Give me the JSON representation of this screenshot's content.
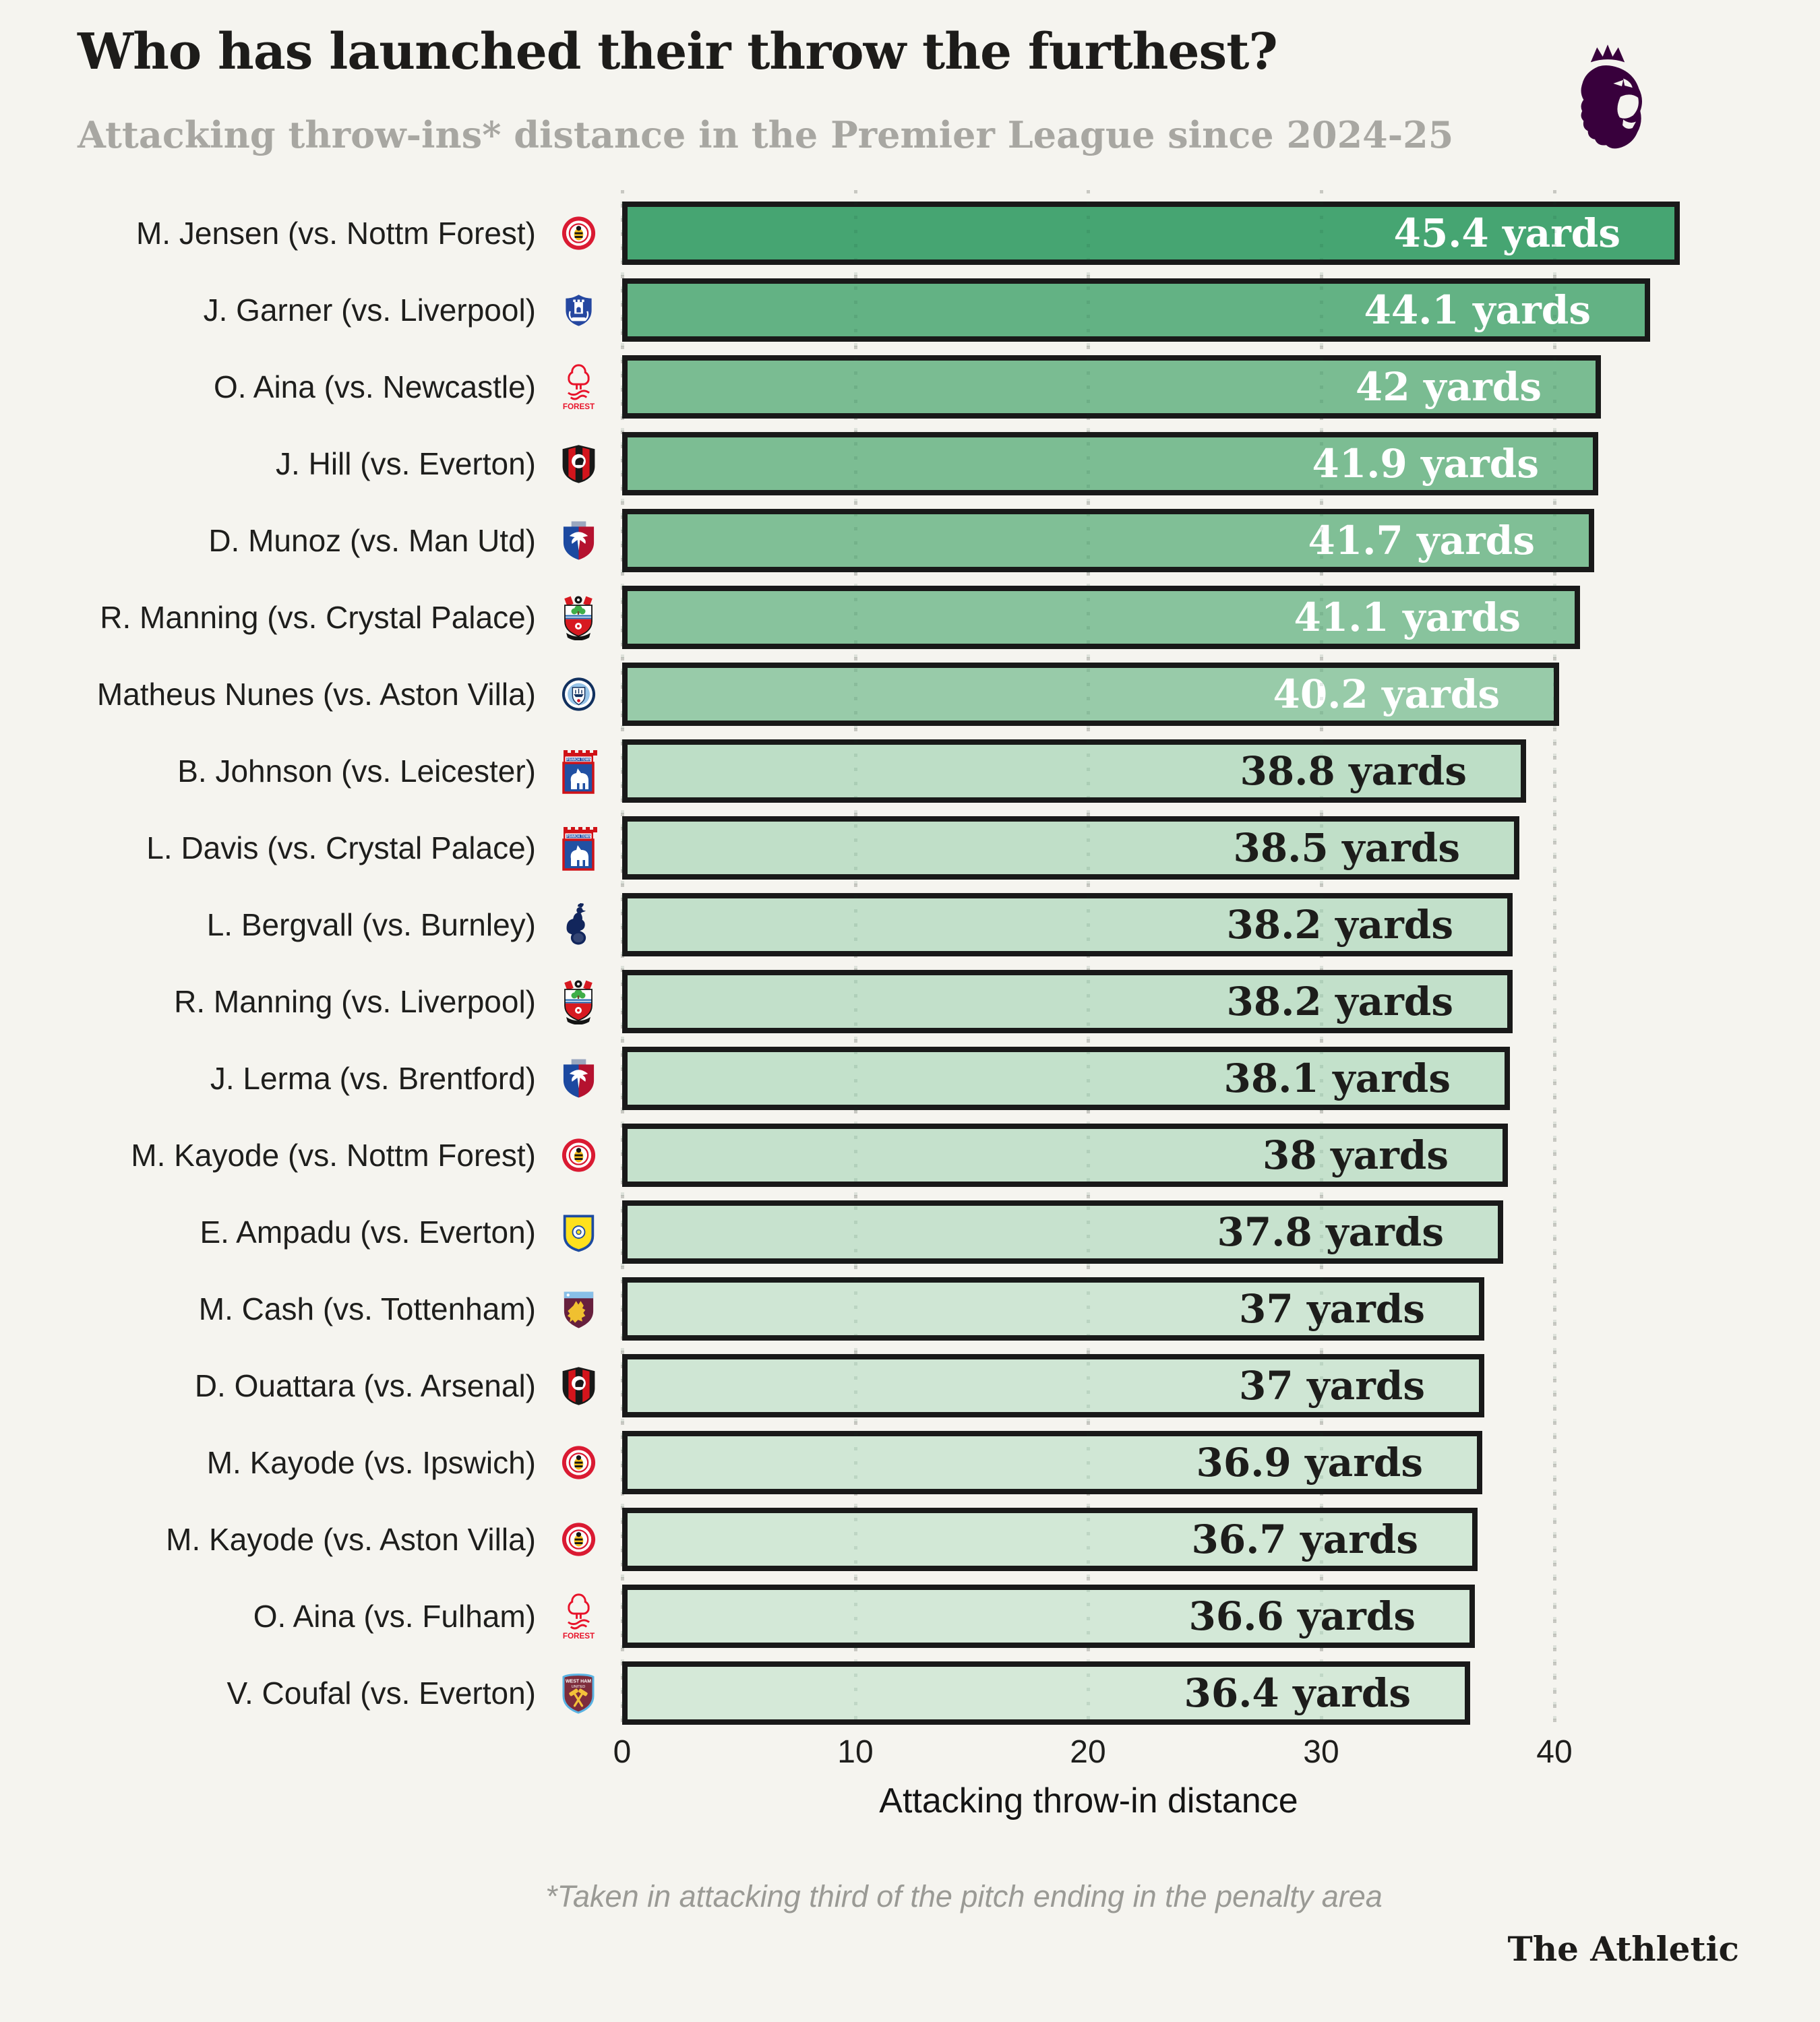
{
  "header": {
    "title": "Who has launched their throw the furthest?",
    "subtitle": "Attacking throw-ins* distance in the Premier League since 2024-25",
    "logo": "premier-league-lion-icon"
  },
  "chart_data": {
    "type": "bar",
    "orientation": "horizontal",
    "title": "Who has launched their throw the furthest?",
    "subtitle": "Attacking throw-ins* distance in the Premier League since 2024-25",
    "xlabel": "Attacking throw-in distance",
    "unit": "yards",
    "x_ticks": [
      0,
      10,
      20,
      30,
      40
    ],
    "xlim": [
      0,
      46
    ],
    "grid": "dotted-vertical",
    "legend": "none",
    "rows": [
      {
        "label": "M. Jensen (vs. Nottm Forest)",
        "club": "brentford",
        "value": 45.4,
        "value_label": "45.4 yards",
        "bar_color": "#46a572",
        "text_color": "#ffffff"
      },
      {
        "label": "J. Garner (vs. Liverpool)",
        "club": "everton",
        "value": 44.1,
        "value_label": "44.1 yards",
        "bar_color": "#63b284",
        "text_color": "#ffffff"
      },
      {
        "label": "O. Aina (vs. Newcastle)",
        "club": "nottm-forest",
        "value": 42,
        "value_label": "42 yards",
        "bar_color": "#7abc92",
        "text_color": "#ffffff"
      },
      {
        "label": "J. Hill (vs. Everton)",
        "club": "bournemouth",
        "value": 41.9,
        "value_label": "41.9 yards",
        "bar_color": "#7cbd93",
        "text_color": "#ffffff"
      },
      {
        "label": "D. Munoz (vs. Man Utd)",
        "club": "crystal-palace",
        "value": 41.7,
        "value_label": "41.7 yards",
        "bar_color": "#80bf96",
        "text_color": "#ffffff"
      },
      {
        "label": "R. Manning (vs. Crystal Palace)",
        "club": "southampton",
        "value": 41.1,
        "value_label": "41.1 yards",
        "bar_color": "#88c39d",
        "text_color": "#ffffff"
      },
      {
        "label": "Matheus Nunes (vs. Aston Villa)",
        "club": "man-city",
        "value": 40.2,
        "value_label": "40.2 yards",
        "bar_color": "#98cba9",
        "text_color": "#ffffff"
      },
      {
        "label": "B. Johnson (vs. Leicester)",
        "club": "ipswich",
        "value": 38.8,
        "value_label": "38.8 yards",
        "bar_color": "#bddec6",
        "text_color": "#1d1d1b"
      },
      {
        "label": "L. Davis (vs. Crystal Palace)",
        "club": "ipswich",
        "value": 38.5,
        "value_label": "38.5 yards",
        "bar_color": "#c0dfc8",
        "text_color": "#1d1d1b"
      },
      {
        "label": "L. Bergvall (vs. Burnley)",
        "club": "tottenham",
        "value": 38.2,
        "value_label": "38.2 yards",
        "bar_color": "#c2e0ca",
        "text_color": "#1d1d1b"
      },
      {
        "label": "R. Manning (vs. Liverpool)",
        "club": "southampton",
        "value": 38.2,
        "value_label": "38.2 yards",
        "bar_color": "#c2e0ca",
        "text_color": "#1d1d1b"
      },
      {
        "label": "J. Lerma (vs. Brentford)",
        "club": "crystal-palace",
        "value": 38.1,
        "value_label": "38.1 yards",
        "bar_color": "#c3e1cb",
        "text_color": "#1d1d1b"
      },
      {
        "label": "M. Kayode (vs. Nottm Forest)",
        "club": "brentford",
        "value": 38,
        "value_label": "38 yards",
        "bar_color": "#c5e1cc",
        "text_color": "#1d1d1b"
      },
      {
        "label": "E. Ampadu (vs. Everton)",
        "club": "leeds",
        "value": 37.8,
        "value_label": "37.8 yards",
        "bar_color": "#c7e2ce",
        "text_color": "#1d1d1b"
      },
      {
        "label": "M. Cash (vs. Tottenham)",
        "club": "aston-villa",
        "value": 37,
        "value_label": "37 yards",
        "bar_color": "#cfe6d4",
        "text_color": "#1d1d1b"
      },
      {
        "label": "D. Ouattara (vs. Arsenal)",
        "club": "bournemouth",
        "value": 37,
        "value_label": "37 yards",
        "bar_color": "#cfe6d4",
        "text_color": "#1d1d1b"
      },
      {
        "label": "M. Kayode (vs. Ipswich)",
        "club": "brentford",
        "value": 36.9,
        "value_label": "36.9 yards",
        "bar_color": "#d0e7d5",
        "text_color": "#1d1d1b"
      },
      {
        "label": "M. Kayode (vs. Aston Villa)",
        "club": "brentford",
        "value": 36.7,
        "value_label": "36.7 yards",
        "bar_color": "#d2e8d6",
        "text_color": "#1d1d1b"
      },
      {
        "label": "O. Aina (vs. Fulham)",
        "club": "nottm-forest",
        "value": 36.6,
        "value_label": "36.6 yards",
        "bar_color": "#d3e8d7",
        "text_color": "#1d1d1b"
      },
      {
        "label": "V. Coufal (vs. Everton)",
        "club": "west-ham",
        "value": 36.4,
        "value_label": "36.4 yards",
        "bar_color": "#d5e9d8",
        "text_color": "#1d1d1b"
      }
    ]
  },
  "badge_art_text": {
    "forest": "FOREST",
    "ipswich": "IPSWICH TOWN",
    "westham_line1": "WEST HAM",
    "westham_line2": "UNITED"
  },
  "footer": {
    "footnote": "*Taken in attacking third of the pitch ending in the penalty area",
    "brand": "The Athletic"
  },
  "colors": {
    "background": "#f5f4ef",
    "bar_border": "#191919",
    "grid": "#c8c8c2",
    "title": "#1d1c1a",
    "subtitle": "#a8a7a2",
    "label_text": "#1e1e1c",
    "footnote": "#9a9a95",
    "premier_league_purple": "#38003c"
  }
}
